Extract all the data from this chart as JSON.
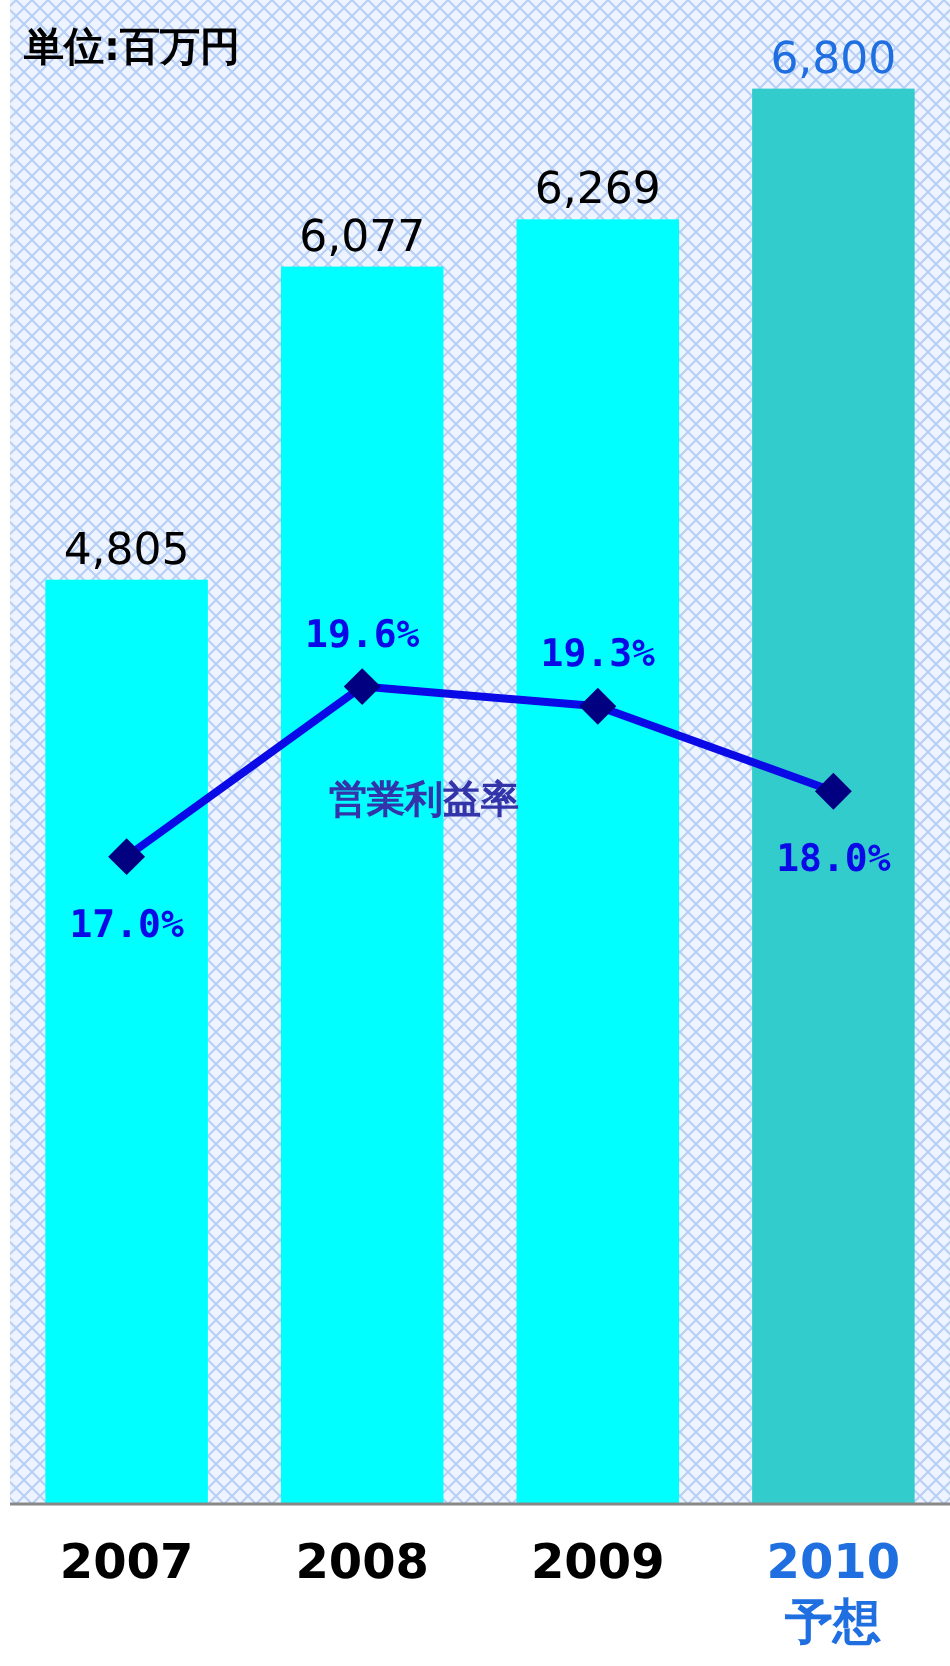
{
  "chart_data": {
    "type": "bar",
    "title": "単位:百万円",
    "categories": [
      "2007",
      "2008",
      "2009",
      "2010\n予想"
    ],
    "ylim": [
      1050,
      7160
    ],
    "y2lim": [
      7.1,
      30.1
    ],
    "tick_labels": "x",
    "series": [
      {
        "colors": [
          "#00ffff",
          "#00ffff",
          "#00ffff",
          "#33cccc"
        ],
        "values": [
          4805,
          6077,
          6269,
          6800
        ],
        "value_labels": [
          "4,805",
          "6,077",
          "6,269",
          "6,800"
        ]
      },
      {
        "type": "line",
        "name": "営業利益率",
        "axis": "y2",
        "color": "#0a0ae6",
        "marker": "diamond",
        "line_style": "solid",
        "values": [
          17.0,
          19.6,
          19.3,
          18.0
        ],
        "value_labels": [
          "17.0%",
          "19.6%",
          "19.3%",
          "18.0%"
        ]
      }
    ]
  }
}
